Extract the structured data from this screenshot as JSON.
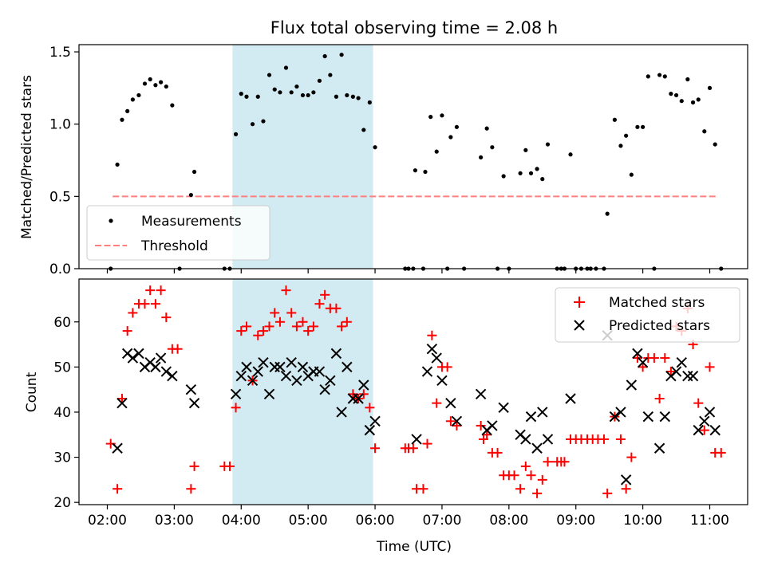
{
  "title": "Flux total observing time = 2.08 h",
  "chart_data": [
    {
      "type": "scatter",
      "ylabel": "Matched/Predicted stars",
      "ylim": [
        0,
        1.55
      ],
      "yticks": [
        "0.0",
        "0.5",
        "1.0",
        "1.5"
      ],
      "legend": "lower-left",
      "threshold": {
        "name": "Threshold",
        "value": 0.5,
        "x_range": [
          2.08,
          11.1
        ],
        "color": "#ff7f7f"
      },
      "highlight_band": {
        "x_range": [
          3.87,
          5.97
        ],
        "color": "#add8e6"
      },
      "series": [
        {
          "name": "Measurements",
          "color": "#000000",
          "points": [
            [
              2.05,
              0
            ],
            [
              2.15,
              0.72
            ],
            [
              2.22,
              1.03
            ],
            [
              2.3,
              1.09
            ],
            [
              2.38,
              1.17
            ],
            [
              2.47,
              1.2
            ],
            [
              2.56,
              1.28
            ],
            [
              2.64,
              1.31
            ],
            [
              2.72,
              1.27
            ],
            [
              2.8,
              1.29
            ],
            [
              2.88,
              1.26
            ],
            [
              2.97,
              1.13
            ],
            [
              3.08,
              0
            ],
            [
              3.25,
              0.51
            ],
            [
              3.3,
              0.67
            ],
            [
              3.75,
              0
            ],
            [
              3.83,
              0
            ],
            [
              3.92,
              0.93
            ],
            [
              4.0,
              1.21
            ],
            [
              4.08,
              1.19
            ],
            [
              4.17,
              1.0
            ],
            [
              4.25,
              1.19
            ],
            [
              4.33,
              1.02
            ],
            [
              4.42,
              1.34
            ],
            [
              4.5,
              1.24
            ],
            [
              4.58,
              1.22
            ],
            [
              4.67,
              1.39
            ],
            [
              4.75,
              1.22
            ],
            [
              4.83,
              1.26
            ],
            [
              4.92,
              1.2
            ],
            [
              5.0,
              1.2
            ],
            [
              5.08,
              1.22
            ],
            [
              5.17,
              1.3
            ],
            [
              5.25,
              1.47
            ],
            [
              5.33,
              1.34
            ],
            [
              5.42,
              1.19
            ],
            [
              5.5,
              1.48
            ],
            [
              5.58,
              1.2
            ],
            [
              5.67,
              1.19
            ],
            [
              5.75,
              1.18
            ],
            [
              5.83,
              0.96
            ],
            [
              5.92,
              1.15
            ],
            [
              6.0,
              0.84
            ],
            [
              6.45,
              0
            ],
            [
              6.5,
              0
            ],
            [
              6.57,
              0
            ],
            [
              6.6,
              0.68
            ],
            [
              6.72,
              0
            ],
            [
              6.75,
              0.67
            ],
            [
              6.83,
              1.05
            ],
            [
              6.92,
              0.81
            ],
            [
              7.0,
              1.06
            ],
            [
              7.08,
              0
            ],
            [
              7.13,
              0.91
            ],
            [
              7.22,
              0.98
            ],
            [
              7.33,
              0
            ],
            [
              7.58,
              0.77
            ],
            [
              7.67,
              0.97
            ],
            [
              7.75,
              0.84
            ],
            [
              7.83,
              0
            ],
            [
              7.92,
              0.64
            ],
            [
              8.0,
              0
            ],
            [
              8.17,
              0.66
            ],
            [
              8.25,
              0.82
            ],
            [
              8.33,
              0.66
            ],
            [
              8.42,
              0.69
            ],
            [
              8.5,
              0.62
            ],
            [
              8.58,
              0.86
            ],
            [
              8.72,
              0
            ],
            [
              8.78,
              0
            ],
            [
              8.83,
              0
            ],
            [
              8.92,
              0.79
            ],
            [
              9.0,
              0
            ],
            [
              9.08,
              0
            ],
            [
              9.17,
              0
            ],
            [
              9.22,
              0
            ],
            [
              9.3,
              0
            ],
            [
              9.42,
              0
            ],
            [
              9.47,
              0.38
            ],
            [
              9.58,
              1.03
            ],
            [
              9.67,
              0.85
            ],
            [
              9.75,
              0.92
            ],
            [
              9.83,
              0.65
            ],
            [
              9.92,
              0.98
            ],
            [
              10.0,
              0.98
            ],
            [
              10.08,
              1.33
            ],
            [
              10.17,
              0
            ],
            [
              10.25,
              1.34
            ],
            [
              10.33,
              1.33
            ],
            [
              10.42,
              1.21
            ],
            [
              10.5,
              1.2
            ],
            [
              10.58,
              1.16
            ],
            [
              10.67,
              1.31
            ],
            [
              10.75,
              1.15
            ],
            [
              10.83,
              1.17
            ],
            [
              10.92,
              0.95
            ],
            [
              11.0,
              1.25
            ],
            [
              11.08,
              0.86
            ],
            [
              11.17,
              0
            ]
          ]
        }
      ]
    },
    {
      "type": "scatter",
      "xlabel": "Time (UTC)",
      "ylabel": "Count",
      "ylim": [
        19.5,
        69.5
      ],
      "yticks": [
        "20",
        "30",
        "40",
        "50",
        "60"
      ],
      "xticks": [
        "02:00",
        "03:00",
        "04:00",
        "05:00",
        "06:00",
        "07:00",
        "08:00",
        "09:00",
        "10:00",
        "11:00"
      ],
      "legend": "top-right",
      "series": [
        {
          "name": "Matched stars",
          "color": "#ff0000",
          "marker": "+",
          "points": [
            [
              2.05,
              33
            ],
            [
              2.15,
              23
            ],
            [
              2.22,
              43
            ],
            [
              2.3,
              58
            ],
            [
              2.38,
              62
            ],
            [
              2.47,
              64
            ],
            [
              2.56,
              64
            ],
            [
              2.64,
              67
            ],
            [
              2.72,
              64
            ],
            [
              2.8,
              67
            ],
            [
              2.88,
              61
            ],
            [
              2.97,
              54
            ],
            [
              3.05,
              54
            ],
            [
              3.25,
              23
            ],
            [
              3.3,
              28
            ],
            [
              3.75,
              28
            ],
            [
              3.83,
              28
            ],
            [
              3.92,
              41
            ],
            [
              4.0,
              58
            ],
            [
              4.08,
              59
            ],
            [
              4.17,
              47
            ],
            [
              4.25,
              57
            ],
            [
              4.33,
              58
            ],
            [
              4.42,
              59
            ],
            [
              4.5,
              62
            ],
            [
              4.58,
              60
            ],
            [
              4.67,
              67
            ],
            [
              4.75,
              62
            ],
            [
              4.83,
              59
            ],
            [
              4.92,
              60
            ],
            [
              5.0,
              58
            ],
            [
              5.08,
              59
            ],
            [
              5.17,
              64
            ],
            [
              5.25,
              66
            ],
            [
              5.33,
              63
            ],
            [
              5.42,
              63
            ],
            [
              5.5,
              59
            ],
            [
              5.58,
              60
            ],
            [
              5.67,
              44
            ],
            [
              5.75,
              43
            ],
            [
              5.83,
              44
            ],
            [
              5.92,
              41
            ],
            [
              6.0,
              32
            ],
            [
              6.45,
              32
            ],
            [
              6.5,
              32
            ],
            [
              6.57,
              32
            ],
            [
              6.62,
              23
            ],
            [
              6.72,
              23
            ],
            [
              6.78,
              33
            ],
            [
              6.85,
              57
            ],
            [
              6.92,
              42
            ],
            [
              7.0,
              50
            ],
            [
              7.08,
              50
            ],
            [
              7.13,
              38
            ],
            [
              7.22,
              37
            ],
            [
              7.58,
              37
            ],
            [
              7.62,
              34
            ],
            [
              7.67,
              35
            ],
            [
              7.75,
              31
            ],
            [
              7.83,
              31
            ],
            [
              7.92,
              26
            ],
            [
              8.0,
              26
            ],
            [
              8.08,
              26
            ],
            [
              8.17,
              23
            ],
            [
              8.25,
              28
            ],
            [
              8.33,
              26
            ],
            [
              8.42,
              22
            ],
            [
              8.5,
              25
            ],
            [
              8.58,
              29
            ],
            [
              8.72,
              29
            ],
            [
              8.78,
              29
            ],
            [
              8.83,
              29
            ],
            [
              8.92,
              34
            ],
            [
              9.0,
              34
            ],
            [
              9.08,
              34
            ],
            [
              9.17,
              34
            ],
            [
              9.25,
              34
            ],
            [
              9.33,
              34
            ],
            [
              9.42,
              34
            ],
            [
              9.47,
              22
            ],
            [
              9.58,
              39
            ],
            [
              9.67,
              34
            ],
            [
              9.75,
              23
            ],
            [
              9.83,
              30
            ],
            [
              9.92,
              52
            ],
            [
              10.0,
              50
            ],
            [
              10.08,
              52
            ],
            [
              10.17,
              52
            ],
            [
              10.25,
              43
            ],
            [
              10.33,
              52
            ],
            [
              10.42,
              49
            ],
            [
              10.5,
              59
            ],
            [
              10.58,
              58
            ],
            [
              10.67,
              63
            ],
            [
              10.75,
              55
            ],
            [
              10.83,
              42
            ],
            [
              10.92,
              36
            ],
            [
              11.0,
              50
            ],
            [
              11.08,
              31
            ],
            [
              11.17,
              31
            ]
          ]
        },
        {
          "name": "Predicted stars",
          "color": "#000000",
          "marker": "x",
          "points": [
            [
              2.15,
              32
            ],
            [
              2.22,
              42
            ],
            [
              2.3,
              53
            ],
            [
              2.38,
              52
            ],
            [
              2.47,
              53
            ],
            [
              2.56,
              50
            ],
            [
              2.64,
              51
            ],
            [
              2.72,
              50
            ],
            [
              2.8,
              52
            ],
            [
              2.88,
              49
            ],
            [
              2.97,
              48
            ],
            [
              3.25,
              45
            ],
            [
              3.3,
              42
            ],
            [
              3.92,
              44
            ],
            [
              4.0,
              48
            ],
            [
              4.08,
              50
            ],
            [
              4.17,
              47
            ],
            [
              4.25,
              49
            ],
            [
              4.33,
              51
            ],
            [
              4.42,
              44
            ],
            [
              4.5,
              50
            ],
            [
              4.58,
              50
            ],
            [
              4.67,
              48
            ],
            [
              4.75,
              51
            ],
            [
              4.83,
              47
            ],
            [
              4.92,
              50
            ],
            [
              5.0,
              48
            ],
            [
              5.08,
              49
            ],
            [
              5.17,
              49
            ],
            [
              5.25,
              45
            ],
            [
              5.33,
              47
            ],
            [
              5.42,
              53
            ],
            [
              5.5,
              40
            ],
            [
              5.58,
              50
            ],
            [
              5.67,
              43
            ],
            [
              5.75,
              43
            ],
            [
              5.83,
              46
            ],
            [
              5.92,
              36
            ],
            [
              6.0,
              38
            ],
            [
              6.62,
              34
            ],
            [
              6.78,
              49
            ],
            [
              6.85,
              54
            ],
            [
              6.92,
              52
            ],
            [
              7.0,
              47
            ],
            [
              7.13,
              42
            ],
            [
              7.22,
              38
            ],
            [
              7.58,
              44
            ],
            [
              7.67,
              36
            ],
            [
              7.75,
              37
            ],
            [
              7.92,
              41
            ],
            [
              8.17,
              35
            ],
            [
              8.25,
              34
            ],
            [
              8.33,
              39
            ],
            [
              8.42,
              32
            ],
            [
              8.5,
              40
            ],
            [
              8.58,
              34
            ],
            [
              8.92,
              43
            ],
            [
              9.47,
              57
            ],
            [
              9.58,
              39
            ],
            [
              9.67,
              40
            ],
            [
              9.75,
              25
            ],
            [
              9.83,
              46
            ],
            [
              9.92,
              53
            ],
            [
              10.0,
              51
            ],
            [
              10.08,
              39
            ],
            [
              10.25,
              32
            ],
            [
              10.33,
              39
            ],
            [
              10.42,
              48
            ],
            [
              10.5,
              49
            ],
            [
              10.58,
              51
            ],
            [
              10.67,
              48
            ],
            [
              10.75,
              48
            ],
            [
              10.83,
              36
            ],
            [
              10.92,
              38
            ],
            [
              11.0,
              40
            ],
            [
              11.08,
              36
            ]
          ]
        }
      ]
    }
  ]
}
